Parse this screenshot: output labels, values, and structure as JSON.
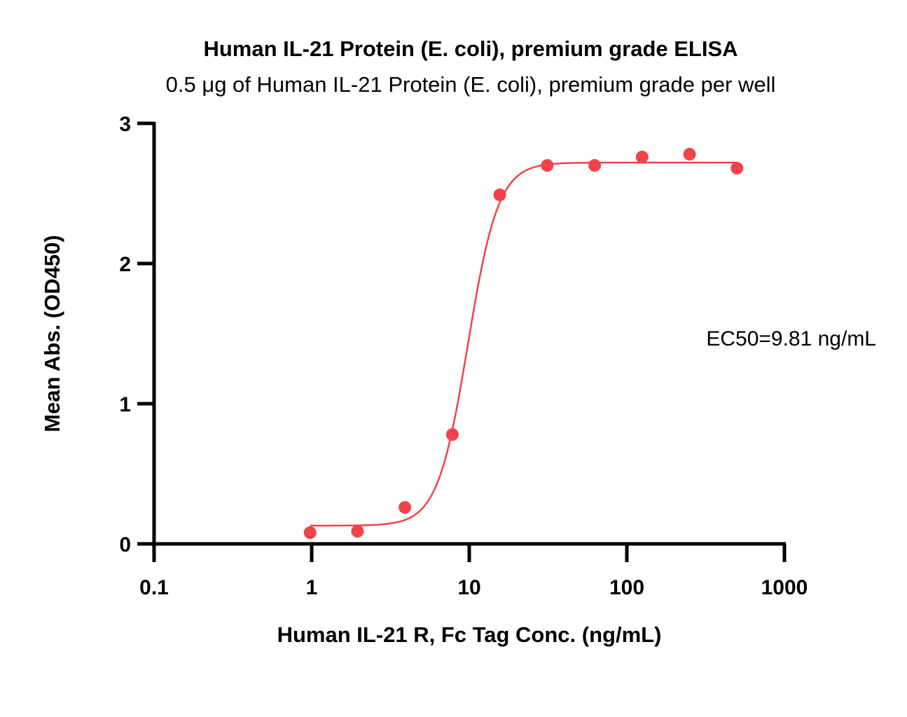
{
  "chart_data": {
    "type": "scatter",
    "title": "Human IL-21 Protein (E. coli), premium grade ELISA",
    "subtitle": "0.5 μg of Human IL-21 Protein (E. coli), premium grade per well",
    "xlabel": "Human IL-21 R, Fc Tag Conc. (ng/mL)",
    "ylabel": "Mean Abs. (OD450)",
    "x_scale": "log",
    "xlim": [
      0.1,
      1000
    ],
    "ylim": [
      0,
      3
    ],
    "x_ticks": [
      0.1,
      1,
      10,
      100,
      1000
    ],
    "x_tick_labels": [
      "0.1",
      "1",
      "10",
      "100",
      "1000"
    ],
    "y_ticks": [
      0,
      1,
      2,
      3
    ],
    "y_tick_labels": [
      "0",
      "1",
      "2",
      "3"
    ],
    "grid": false,
    "color": "#f0434a",
    "series": [
      {
        "x": [
          0.977,
          1.953,
          3.906,
          7.813,
          15.625,
          31.25,
          62.5,
          125,
          250,
          500
        ],
        "y": [
          0.08,
          0.09,
          0.26,
          0.78,
          2.49,
          2.7,
          2.7,
          2.76,
          2.78,
          2.68
        ]
      }
    ],
    "fit": {
      "model": "4PL",
      "bottom": 0.13,
      "top": 2.72,
      "ec50": 9.81,
      "hill": 4.5
    },
    "annotation": "EC50=9.81 ng/mL"
  }
}
